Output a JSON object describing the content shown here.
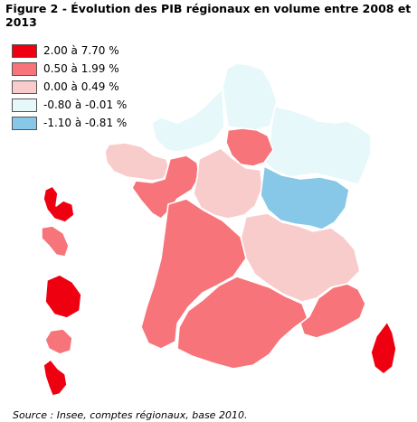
{
  "figure": {
    "title": "Figure 2 - Évolution des PIB régionaux en volume entre 2008 et 2013",
    "source": "Source : Insee, comptes régionaux, base 2010."
  },
  "legend": {
    "items": [
      {
        "label": "2.00 à 7.70 %",
        "color": "#ee0011"
      },
      {
        "label": "0.50 à 1.99 %",
        "color": "#f6747a"
      },
      {
        "label": "0.00 à 0.49 %",
        "color": "#f9cccc"
      },
      {
        "label": "-0.80 à -0.01 %",
        "color": "#e6f8fa"
      },
      {
        "label": "-1.10 à -0.81 %",
        "color": "#87c8e8"
      }
    ]
  }
}
